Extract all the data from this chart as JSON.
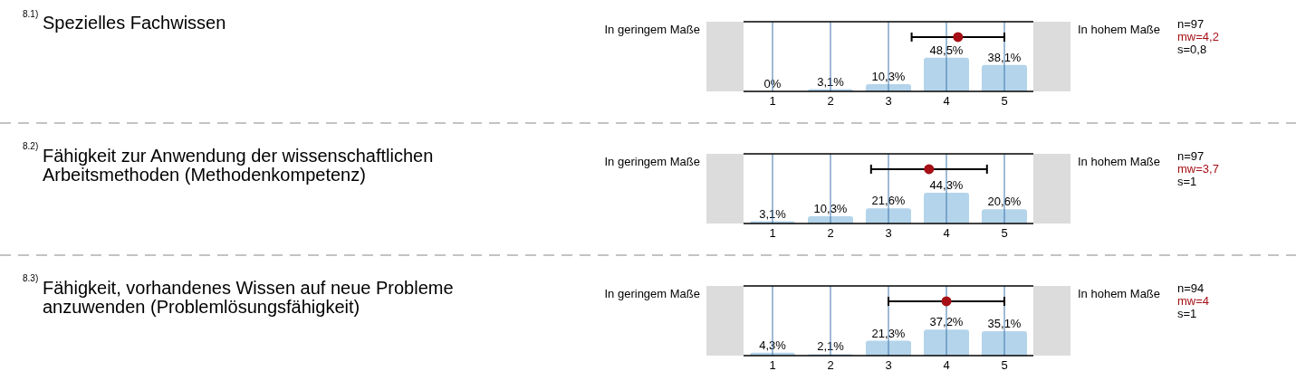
{
  "chart_data": [
    {
      "type": "bar",
      "xlim": [
        0.5,
        5.5
      ],
      "xticks": [
        1,
        2,
        3,
        4,
        5
      ],
      "ylim": [
        0,
        100
      ],
      "tick_labels": "x",
      "grid": "x",
      "annotations": [
        "8.1)",
        "Spezielles Fachwissen",
        "In geringem Maße",
        "In hohem Maße",
        "n=97",
        "mw=4,2",
        "s=0,8"
      ],
      "series": [
        {
          "type": "bar",
          "x": [
            1,
            2,
            3,
            4,
            5
          ],
          "values": [
            0,
            3.1,
            10.3,
            48.5,
            38.1
          ],
          "value_labels": [
            "0%",
            "3,1%",
            "10,3%",
            "48,5%",
            "38,1%"
          ],
          "color": "#b3d4ea"
        },
        {
          "type": "scatter",
          "x": [
            4.2
          ],
          "values": [
            78
          ],
          "xerrors": [
            0.8
          ],
          "color": "#a50f15"
        }
      ]
    },
    {
      "type": "bar",
      "xlim": [
        0.5,
        5.5
      ],
      "xticks": [
        1,
        2,
        3,
        4,
        5
      ],
      "ylim": [
        0,
        100
      ],
      "tick_labels": "x",
      "grid": "x",
      "annotations": [
        "8.2)",
        "Fähigkeit zur Anwendung der wissenschaftlichen Arbeitsmethoden (Methodenkompetenz)",
        "In geringem Maße",
        "In hohem Maße",
        "n=97",
        "mw=3,7",
        "s=1"
      ],
      "series": [
        {
          "type": "bar",
          "x": [
            1,
            2,
            3,
            4,
            5
          ],
          "values": [
            3.1,
            10.3,
            21.6,
            44.3,
            20.6
          ],
          "value_labels": [
            "3,1%",
            "10,3%",
            "21,6%",
            "44,3%",
            "20,6%"
          ],
          "color": "#b3d4ea"
        },
        {
          "type": "scatter",
          "x": [
            3.7
          ],
          "values": [
            78
          ],
          "xerrors": [
            1
          ],
          "color": "#a50f15"
        }
      ]
    },
    {
      "type": "bar",
      "xlim": [
        0.5,
        5.5
      ],
      "xticks": [
        1,
        2,
        3,
        4,
        5
      ],
      "ylim": [
        0,
        100
      ],
      "tick_labels": "x",
      "grid": "x",
      "annotations": [
        "8.3)",
        "Fähigkeit, vorhandenes Wissen auf neue Probleme anzuwenden (Problemlösungsfähigkeit)",
        "In geringem Maße",
        "In hohem Maße",
        "n=94",
        "mw=4",
        "s=1"
      ],
      "series": [
        {
          "type": "bar",
          "x": [
            1,
            2,
            3,
            4,
            5
          ],
          "values": [
            4.3,
            2.1,
            21.3,
            37.2,
            35.1
          ],
          "value_labels": [
            "4,3%",
            "2,1%",
            "21,3%",
            "37,2%",
            "35,1%"
          ],
          "color": "#b3d4ea"
        },
        {
          "type": "scatter",
          "x": [
            4
          ],
          "values": [
            78
          ],
          "xerrors": [
            1
          ],
          "color": "#a50f15"
        }
      ]
    }
  ]
}
